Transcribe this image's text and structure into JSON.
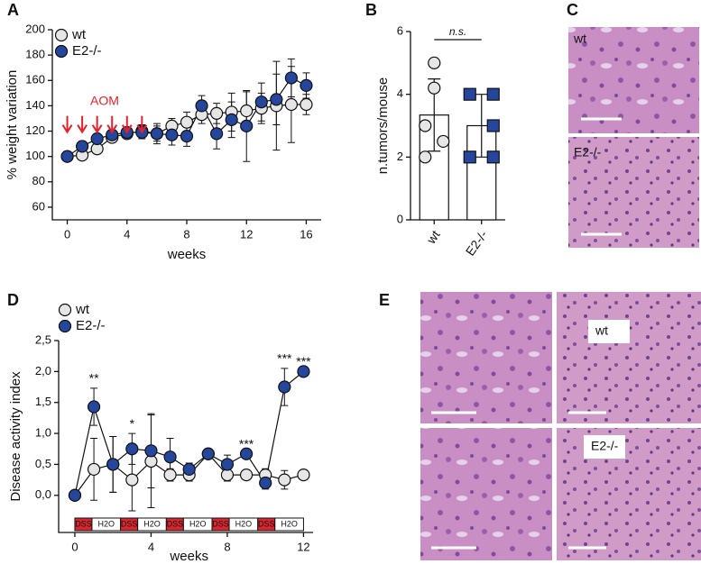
{
  "chart_data": [
    {
      "type": "line",
      "panel": "A",
      "xlabel": "weeks",
      "ylabel": "% weight variation",
      "x": [
        0,
        1,
        2,
        3,
        4,
        5,
        6,
        7,
        8,
        9,
        10,
        11,
        12,
        13,
        14,
        15,
        16
      ],
      "xlim": [
        -1,
        17
      ],
      "xticks": [
        0,
        4,
        8,
        12,
        16
      ],
      "ylim": [
        50,
        200
      ],
      "yticks": [
        60,
        80,
        100,
        120,
        140,
        160,
        180,
        200
      ],
      "series": [
        {
          "name": "wt",
          "color": "#e6e6e6",
          "values": [
            100,
            101,
            106,
            115,
            118,
            120,
            118,
            124,
            127,
            133,
            134,
            135,
            136,
            138,
            140,
            141,
            141
          ],
          "errors": [
            0,
            3,
            4,
            3,
            4,
            5,
            6,
            6,
            8,
            7,
            8,
            15,
            15,
            12,
            35,
            30,
            8
          ]
        },
        {
          "name": "E2-/-",
          "color": "#24469c",
          "values": [
            100,
            108,
            114,
            117,
            119,
            119,
            118,
            117,
            116,
            140,
            118,
            129,
            124,
            143,
            145,
            162,
            156
          ],
          "errors": [
            0,
            4,
            3,
            3,
            4,
            5,
            8,
            8,
            8,
            8,
            12,
            14,
            28,
            15,
            20,
            15,
            10
          ]
        }
      ],
      "annotation": {
        "text": "AOM",
        "color": "#e8202a",
        "x": [
          0,
          1,
          2,
          3,
          4,
          5
        ]
      }
    },
    {
      "type": "bar",
      "panel": "B",
      "ylabel": "n.tumors/mouse",
      "categories": [
        "wt",
        "E2-/-"
      ],
      "values": [
        3.34,
        3.0
      ],
      "errors": [
        1.15,
        1.0
      ],
      "points": [
        [
          5,
          4.2,
          3,
          2.5,
          2
        ],
        [
          4,
          4,
          3,
          2,
          2
        ]
      ],
      "point_colors": [
        "#e6e6e6",
        "#24469c"
      ],
      "bar_color": "#ffffff",
      "ylim": [
        0,
        6
      ],
      "yticks": [
        0,
        2,
        4,
        6
      ],
      "annotation": "n.s."
    },
    {
      "type": "line",
      "panel": "D",
      "xlabel": "weeks",
      "ylabel": "Disease activity index",
      "x": [
        0,
        1,
        2,
        3,
        4,
        5,
        6,
        7,
        8,
        9,
        10,
        11,
        12
      ],
      "xlim": [
        -0.85,
        12.5
      ],
      "xticks": [
        0,
        4,
        8,
        12
      ],
      "ylim": [
        -0.6,
        2.5
      ],
      "yticks": [
        {
          "value": 0,
          "label": "0,0"
        },
        {
          "value": 0.5,
          "label": "0,5"
        },
        {
          "value": 1,
          "label": "1,0"
        },
        {
          "value": 1.5,
          "label": "1,5"
        },
        {
          "value": 2,
          "label": "2,0"
        },
        {
          "value": 2.5,
          "label": "2,5"
        }
      ],
      "series": [
        {
          "name": "wt",
          "color": "#e6e6e6",
          "values": [
            0,
            0.42,
            0.5,
            0.25,
            0.55,
            0.33,
            0.33,
            0.67,
            0.33,
            0.33,
            0.33,
            0.25,
            0.33
          ],
          "errors": [
            0,
            0.5,
            0.45,
            0.5,
            0.75,
            0.1,
            0.1,
            0,
            0.1,
            0,
            0.1,
            0.15,
            0
          ]
        },
        {
          "name": "E2-/-",
          "color": "#24469c",
          "values": [
            0,
            1.43,
            0.5,
            0.75,
            0.72,
            0.62,
            0.42,
            0.67,
            0.5,
            0.67,
            0.2,
            1.75,
            2.0
          ],
          "errors": [
            0,
            0.3,
            0.45,
            0.25,
            0.6,
            0.3,
            0.1,
            0,
            0.15,
            0,
            0.1,
            0.3,
            0
          ]
        }
      ],
      "significance": [
        {
          "x": 1,
          "label": "**"
        },
        {
          "x": 3,
          "label": "*"
        },
        {
          "x": 9,
          "label": "***"
        },
        {
          "x": 11,
          "label": "***"
        },
        {
          "x": 12,
          "label": "***"
        }
      ],
      "treatments": [
        "DSS",
        "H2O",
        "DSS",
        "H2O",
        "DSS",
        "H2O",
        "DSS",
        "H2O",
        "DSS",
        "H2O"
      ]
    }
  ],
  "images": [
    {
      "panel": "C",
      "labels": [
        "wt",
        "E2-/-"
      ]
    },
    {
      "panel": "E",
      "labels": [
        "wt",
        "E2-/-"
      ]
    }
  ]
}
